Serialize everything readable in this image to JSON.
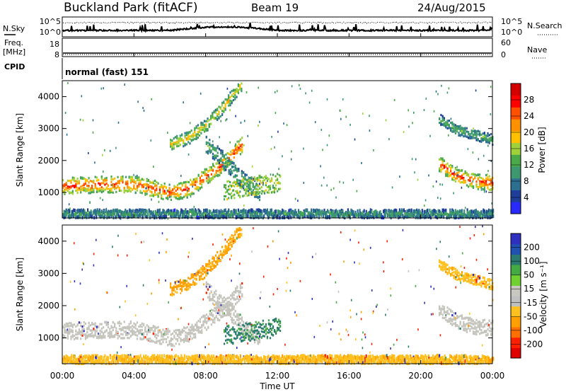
{
  "header": {
    "station": "Buckland Park (fitACF)",
    "beam": "Beam 19",
    "date": "24/Aug/2015"
  },
  "top_panels": {
    "nsky_label": "N.Sky",
    "nsearch_label": "N.Search",
    "left_ticks": [
      "10^5",
      "10^0"
    ],
    "right_ticks": [
      "10^5",
      "10^0"
    ],
    "freq_label": "Freq.",
    "freq_unit": "[MHz]",
    "freq_ticks": [
      "18",
      "8"
    ],
    "nave_label": "Nave",
    "nave_ticks": [
      "60",
      "0"
    ],
    "cpid_label": "CPID",
    "cpid_text": "normal (fast) 151"
  },
  "colors": {
    "power_scale": [
      "#2a2aff",
      "#1f3e9a",
      "#2d6f90",
      "#3d9870",
      "#4aaa4a",
      "#9fd13a",
      "#ffc000",
      "#ff9000",
      "#ff5000",
      "#ff0000",
      "#d40000"
    ],
    "velocity_scale": [
      "#3030c0",
      "#2050b0",
      "#2a7a70",
      "#44aa44",
      "#70d030",
      "#c8c8c0",
      "#c0c0c0",
      "#ffc020",
      "#ffa000",
      "#ff7000",
      "#ff2000",
      "#e00000"
    ]
  },
  "chart_data": [
    {
      "type": "heatmap",
      "name": "power",
      "ylabel": "Slant Range [km]",
      "xlabel": "",
      "y_ticks": [
        "1000",
        "2000",
        "3000",
        "4000"
      ],
      "ylim": [
        200,
        4500
      ],
      "colorbar": {
        "label": "Power [dB]",
        "ticks": [
          "4",
          "8",
          "12",
          "16",
          "20",
          "24",
          "28"
        ],
        "range": [
          0,
          30
        ]
      },
      "x_hours": [
        0,
        1,
        2,
        3,
        4,
        5,
        6,
        7,
        8,
        9,
        10,
        11,
        12,
        13,
        14,
        16,
        18,
        20,
        21,
        22,
        23,
        24
      ],
      "bands": [
        {
          "name": "main_echo",
          "hours": [
            0,
            2,
            4,
            6,
            7,
            8,
            9,
            10
          ],
          "center_km": [
            1200,
            1250,
            1250,
            1000,
            1100,
            1500,
            1900,
            2500
          ],
          "power_db": 26
        },
        {
          "name": "upper_arc",
          "hours": [
            6,
            7,
            8,
            9,
            10
          ],
          "center_km": [
            2500,
            2700,
            3100,
            3700,
            4400
          ],
          "power_db": 18
        },
        {
          "name": "return_arc",
          "hours": [
            8,
            9,
            10,
            11
          ],
          "center_km": [
            2500,
            2000,
            1400,
            1000
          ],
          "power_db": 12
        },
        {
          "name": "late_main",
          "hours": [
            21,
            22,
            23,
            24
          ],
          "center_km": [
            1900,
            1500,
            1350,
            1300
          ],
          "power_db": 26
        },
        {
          "name": "late_upper",
          "hours": [
            21,
            22,
            23,
            24
          ],
          "center_km": [
            3300,
            2950,
            2800,
            2650
          ],
          "power_db": 12
        },
        {
          "name": "ground_scatter",
          "hours": [
            0,
            24
          ],
          "center_km": [
            350,
            350
          ],
          "power_db": 10
        }
      ]
    },
    {
      "type": "heatmap",
      "name": "velocity",
      "ylabel": "Slant Range [km]",
      "xlabel": "Time UT",
      "y_ticks": [
        "1000",
        "2000",
        "3000",
        "4000"
      ],
      "x_ticks": [
        "00:00",
        "04:00",
        "08:00",
        "12:00",
        "16:00",
        "20:00",
        "00:00"
      ],
      "ylim": [
        200,
        4500
      ],
      "colorbar": {
        "label": "Velocity [m s⁻¹]",
        "ticks": [
          "200",
          "100",
          "50",
          "15",
          "-15",
          "-50",
          "-100",
          "-200"
        ],
        "range": [
          -250,
          250
        ]
      },
      "bands": [
        {
          "name": "main_echo",
          "velocity": 0
        },
        {
          "name": "upper_arc",
          "velocity": -60
        },
        {
          "name": "green_patch",
          "hours": [
            9,
            12
          ],
          "center_km": [
            900,
            1300
          ],
          "velocity": 50
        },
        {
          "name": "late_main",
          "velocity": 0
        },
        {
          "name": "late_upper",
          "velocity": -40
        },
        {
          "name": "ground_scatter",
          "velocity": -40
        }
      ]
    }
  ]
}
